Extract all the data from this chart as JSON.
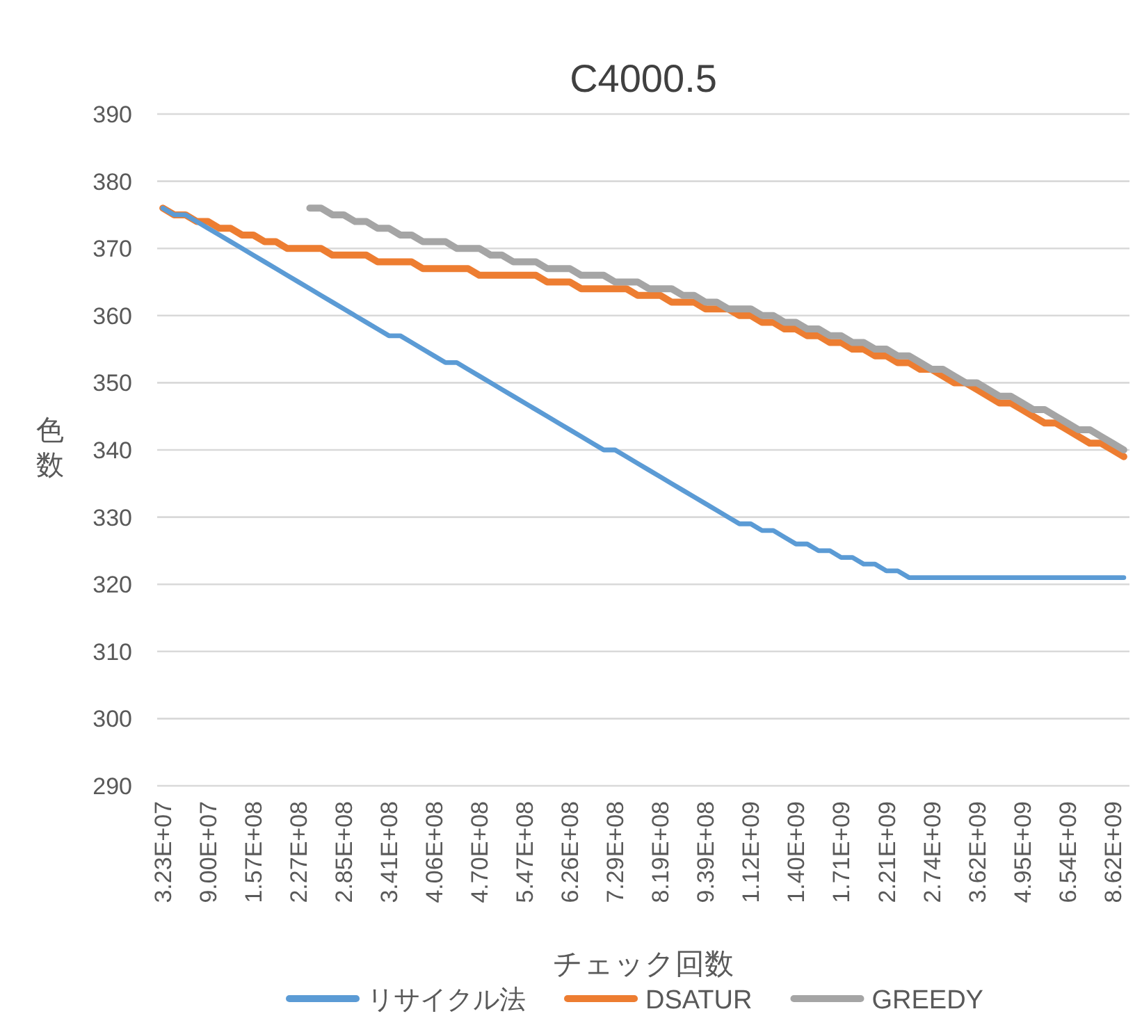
{
  "chart_data": {
    "type": "line",
    "title": "C4000.5",
    "xlabel": "チェック回数",
    "ylabel": "色数",
    "categories": [
      "3.23E+07",
      null,
      null,
      null,
      "9.00E+07",
      null,
      null,
      null,
      "1.57E+08",
      null,
      null,
      null,
      "2.27E+08",
      null,
      null,
      null,
      "2.85E+08",
      null,
      null,
      null,
      "3.41E+08",
      null,
      null,
      null,
      "4.06E+08",
      null,
      null,
      null,
      "4.70E+08",
      null,
      null,
      null,
      "5.47E+08",
      null,
      null,
      null,
      "6.26E+08",
      null,
      null,
      null,
      "7.29E+08",
      null,
      null,
      null,
      "8.19E+08",
      null,
      null,
      null,
      "9.39E+08",
      null,
      null,
      null,
      "1.12E+09",
      null,
      null,
      null,
      "1.40E+09",
      null,
      null,
      null,
      "1.71E+09",
      null,
      null,
      null,
      "2.21E+09",
      null,
      null,
      null,
      "2.74E+09",
      null,
      null,
      null,
      "3.62E+09",
      null,
      null,
      null,
      "4.95E+09",
      null,
      null,
      null,
      "6.54E+09",
      null,
      null,
      null,
      "8.62E+09",
      null
    ],
    "series": [
      {
        "name": "リサイクル法",
        "color": "#5b9bd5",
        "values": [
          376,
          375,
          375,
          374,
          373,
          372,
          371,
          370,
          369,
          368,
          367,
          366,
          365,
          364,
          363,
          362,
          361,
          360,
          359,
          358,
          357,
          357,
          356,
          355,
          354,
          353,
          353,
          352,
          351,
          350,
          349,
          348,
          347,
          346,
          345,
          344,
          343,
          342,
          341,
          340,
          340,
          339,
          338,
          337,
          336,
          335,
          334,
          333,
          332,
          331,
          330,
          329,
          329,
          328,
          328,
          327,
          326,
          326,
          325,
          325,
          324,
          324,
          323,
          323,
          322,
          322,
          321,
          321,
          321,
          321,
          321,
          321,
          321,
          321,
          321,
          321,
          321,
          321,
          321,
          321,
          321,
          321,
          321,
          321,
          321,
          321
        ]
      },
      {
        "name": "DSATUR",
        "color": "#ed7d31",
        "values": [
          376,
          375,
          375,
          374,
          374,
          373,
          373,
          372,
          372,
          371,
          371,
          370,
          370,
          370,
          370,
          369,
          369,
          369,
          369,
          368,
          368,
          368,
          368,
          367,
          367,
          367,
          367,
          367,
          366,
          366,
          366,
          366,
          366,
          366,
          365,
          365,
          365,
          364,
          364,
          364,
          364,
          364,
          363,
          363,
          363,
          362,
          362,
          362,
          361,
          361,
          361,
          360,
          360,
          359,
          359,
          358,
          358,
          357,
          357,
          356,
          356,
          355,
          355,
          354,
          354,
          353,
          353,
          352,
          352,
          351,
          350,
          350,
          349,
          348,
          347,
          347,
          346,
          345,
          344,
          344,
          343,
          342,
          341,
          341,
          340,
          339
        ]
      },
      {
        "name": "GREEDY",
        "color": "#a5a5a5",
        "values": [
          null,
          null,
          null,
          null,
          null,
          null,
          null,
          null,
          null,
          null,
          null,
          null,
          null,
          376,
          376,
          375,
          375,
          374,
          374,
          373,
          373,
          372,
          372,
          371,
          371,
          371,
          370,
          370,
          370,
          369,
          369,
          368,
          368,
          368,
          367,
          367,
          367,
          366,
          366,
          366,
          365,
          365,
          365,
          364,
          364,
          364,
          363,
          363,
          362,
          362,
          361,
          361,
          361,
          360,
          360,
          359,
          359,
          358,
          358,
          357,
          357,
          356,
          356,
          355,
          355,
          354,
          354,
          353,
          352,
          352,
          351,
          350,
          350,
          349,
          348,
          348,
          347,
          346,
          346,
          345,
          344,
          343,
          343,
          342,
          341,
          340
        ]
      }
    ],
    "ylim": [
      290,
      390
    ],
    "yticks": [
      290,
      300,
      310,
      320,
      330,
      340,
      350,
      360,
      370,
      380,
      390
    ],
    "grid": "y",
    "legend": "bottom",
    "marker": "none",
    "line_style": "solid"
  }
}
